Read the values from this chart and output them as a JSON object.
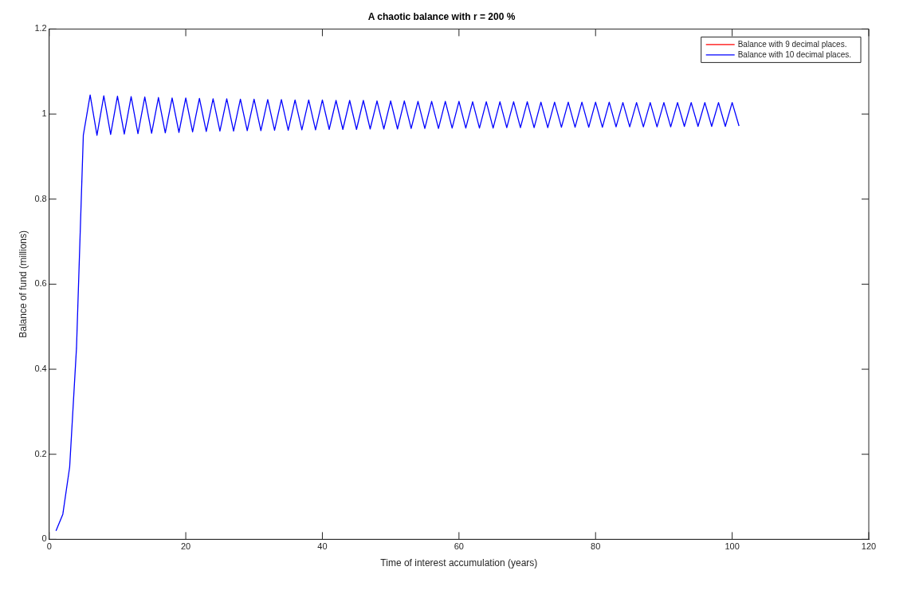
{
  "chart_data": {
    "type": "line",
    "title": "A chaotic balance with r = 200 %",
    "xlabel": "Time of interest accumulation (years)",
    "ylabel": "Balance of fund (millions)",
    "xlim": [
      0,
      120
    ],
    "xticks": [
      0,
      20,
      40,
      60,
      80,
      100,
      120
    ],
    "ylim": [
      0,
      1.2
    ],
    "yticks": [
      0,
      0.2,
      0.4,
      0.6,
      0.8,
      1,
      1.2
    ],
    "grid": false,
    "legend": "top right",
    "marker": "none",
    "line_style": "solid",
    "series": [
      {
        "name": "Balance with 9 decimal places.",
        "color": "#ff0000",
        "values": [
          null
        ]
      },
      {
        "name": "Balance with 10 decimal places.",
        "color": "#0000ff",
        "x": [
          1,
          2,
          3,
          4,
          5,
          6,
          7,
          8,
          9,
          10,
          11,
          12,
          13,
          14,
          15,
          16,
          17,
          18,
          19,
          20,
          21,
          22,
          23,
          24,
          25,
          26,
          27,
          28,
          29,
          30,
          31,
          32,
          33,
          34,
          35,
          36,
          37,
          38,
          39,
          40,
          41,
          42,
          43,
          44,
          45,
          46,
          47,
          48,
          49,
          50,
          51,
          52,
          53,
          54,
          55,
          56,
          57,
          58,
          59,
          60,
          61,
          62,
          63,
          64,
          65,
          66,
          67,
          68,
          69,
          70,
          71,
          72,
          73,
          74,
          75,
          76,
          77,
          78,
          79,
          80,
          81,
          82,
          83,
          84,
          85,
          86,
          87,
          88,
          89,
          90,
          91,
          92,
          93,
          94,
          95,
          96,
          97,
          98,
          99,
          100,
          101
        ],
        "values": [
          0.02,
          0.059,
          0.17,
          0.45,
          0.95,
          1.045,
          0.95,
          1.043,
          0.952,
          1.042,
          0.953,
          1.041,
          0.954,
          1.04,
          0.955,
          1.039,
          0.956,
          1.038,
          0.957,
          1.038,
          0.958,
          1.037,
          0.959,
          1.036,
          0.96,
          1.036,
          0.96,
          1.035,
          0.961,
          1.035,
          0.961,
          1.034,
          0.962,
          1.034,
          0.962,
          1.033,
          0.963,
          1.033,
          0.963,
          1.033,
          0.964,
          1.032,
          0.964,
          1.032,
          0.964,
          1.032,
          0.965,
          1.031,
          0.965,
          1.031,
          0.965,
          1.031,
          0.966,
          1.03,
          0.966,
          1.03,
          0.966,
          1.03,
          0.967,
          1.03,
          0.967,
          1.029,
          0.967,
          1.029,
          0.967,
          1.029,
          0.968,
          1.029,
          0.968,
          1.029,
          0.968,
          1.028,
          0.968,
          1.028,
          0.969,
          1.028,
          0.969,
          1.028,
          0.969,
          1.028,
          0.969,
          1.028,
          0.97,
          1.027,
          0.97,
          1.027,
          0.97,
          1.027,
          0.97,
          1.027,
          0.97,
          1.027,
          0.971,
          1.027,
          0.971,
          1.027,
          0.971,
          1.027,
          0.971,
          1.027,
          0.972
        ]
      }
    ]
  }
}
